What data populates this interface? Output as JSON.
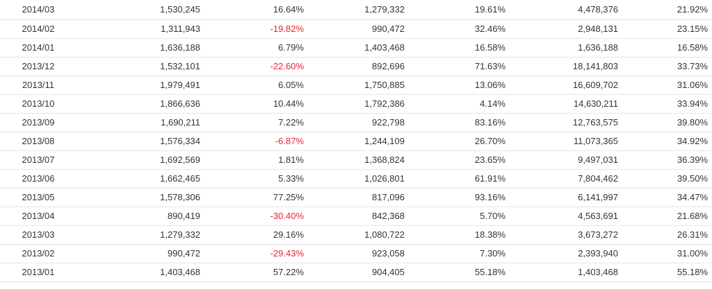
{
  "table": {
    "rows": [
      [
        "2014/03",
        "1,530,245",
        "16.64%",
        "1,279,332",
        "19.61%",
        "4,478,376",
        "21.92%"
      ],
      [
        "2014/02",
        "1,311,943",
        "-19.82%",
        "990,472",
        "32.46%",
        "2,948,131",
        "23.15%"
      ],
      [
        "2014/01",
        "1,636,188",
        "6.79%",
        "1,403,468",
        "16.58%",
        "1,636,188",
        "16.58%"
      ],
      [
        "2013/12",
        "1,532,101",
        "-22.60%",
        "892,696",
        "71.63%",
        "18,141,803",
        "33.73%"
      ],
      [
        "2013/11",
        "1,979,491",
        "6.05%",
        "1,750,885",
        "13.06%",
        "16,609,702",
        "31.06%"
      ],
      [
        "2013/10",
        "1,866,636",
        "10.44%",
        "1,792,386",
        "4.14%",
        "14,630,211",
        "33.94%"
      ],
      [
        "2013/09",
        "1,690,211",
        "7.22%",
        "922,798",
        "83.16%",
        "12,763,575",
        "39.80%"
      ],
      [
        "2013/08",
        "1,576,334",
        "-6.87%",
        "1,244,109",
        "26.70%",
        "11,073,365",
        "34.92%"
      ],
      [
        "2013/07",
        "1,692,569",
        "1.81%",
        "1,368,824",
        "23.65%",
        "9,497,031",
        "36.39%"
      ],
      [
        "2013/06",
        "1,662,465",
        "5.33%",
        "1,026,801",
        "61.91%",
        "7,804,462",
        "39.50%"
      ],
      [
        "2013/05",
        "1,578,306",
        "77.25%",
        "817,096",
        "93.16%",
        "6,141,997",
        "34.47%"
      ],
      [
        "2013/04",
        "890,419",
        "-30.40%",
        "842,368",
        "5.70%",
        "4,563,691",
        "21.68%"
      ],
      [
        "2013/03",
        "1,279,332",
        "29.16%",
        "1,080,722",
        "18.38%",
        "3,673,272",
        "26.31%"
      ],
      [
        "2013/02",
        "990,472",
        "-29.43%",
        "923,058",
        "7.30%",
        "2,393,940",
        "31.00%"
      ],
      [
        "2013/01",
        "1,403,468",
        "57.22%",
        "904,405",
        "55.18%",
        "1,403,468",
        "55.18%"
      ]
    ]
  },
  "colors": {
    "text": "#333333",
    "negative": "#e8232e",
    "row_border": "#e6e6e6"
  }
}
